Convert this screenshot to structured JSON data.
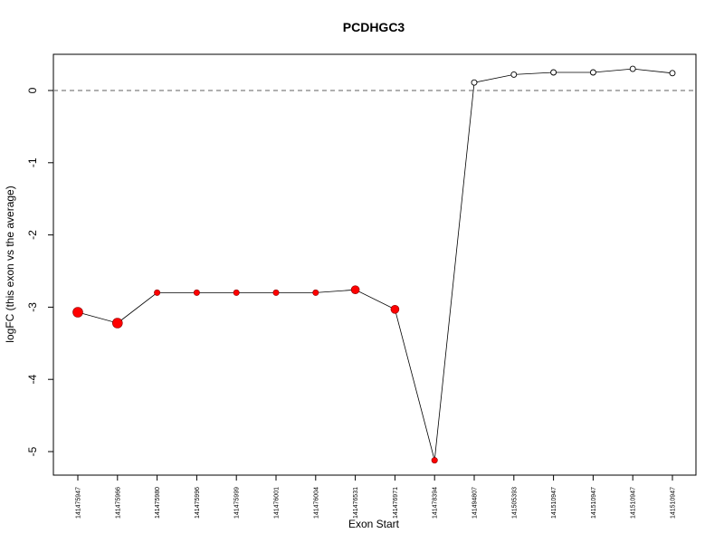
{
  "chart_data": {
    "type": "line",
    "title": "PCDHGC3",
    "xlabel": "Exon Start",
    "ylabel": "logFC (this exon vs the average)",
    "categories": [
      "141475947",
      "141475966",
      "141475980",
      "141475996",
      "141475999",
      "141476001",
      "141476004",
      "141476531",
      "141476971",
      "141478394",
      "141494807",
      "141505393",
      "141510947",
      "141510947",
      "141510947",
      "141510947"
    ],
    "values": [
      -3.07,
      -3.22,
      -2.8,
      -2.8,
      -2.8,
      -2.8,
      -2.8,
      -2.76,
      -3.03,
      -5.12,
      0.11,
      0.22,
      0.25,
      0.25,
      0.3,
      0.24
    ],
    "point_style": [
      "large-red",
      "large-red",
      "small-red",
      "small-red",
      "small-red",
      "small-red",
      "small-red",
      "medium-red",
      "medium-red",
      "small-red",
      "open",
      "open",
      "open",
      "open",
      "open",
      "open"
    ],
    "yticks": [
      0,
      -1,
      -2,
      -3,
      -4,
      -5
    ],
    "ylim": [
      -5.3,
      0.5
    ],
    "reference_line": {
      "y": 0,
      "style": "dashed"
    },
    "grid": false,
    "legend": "none",
    "colors": {
      "filled_point": "#ff0000",
      "line": "#000000",
      "reference_line": "#808080"
    }
  }
}
